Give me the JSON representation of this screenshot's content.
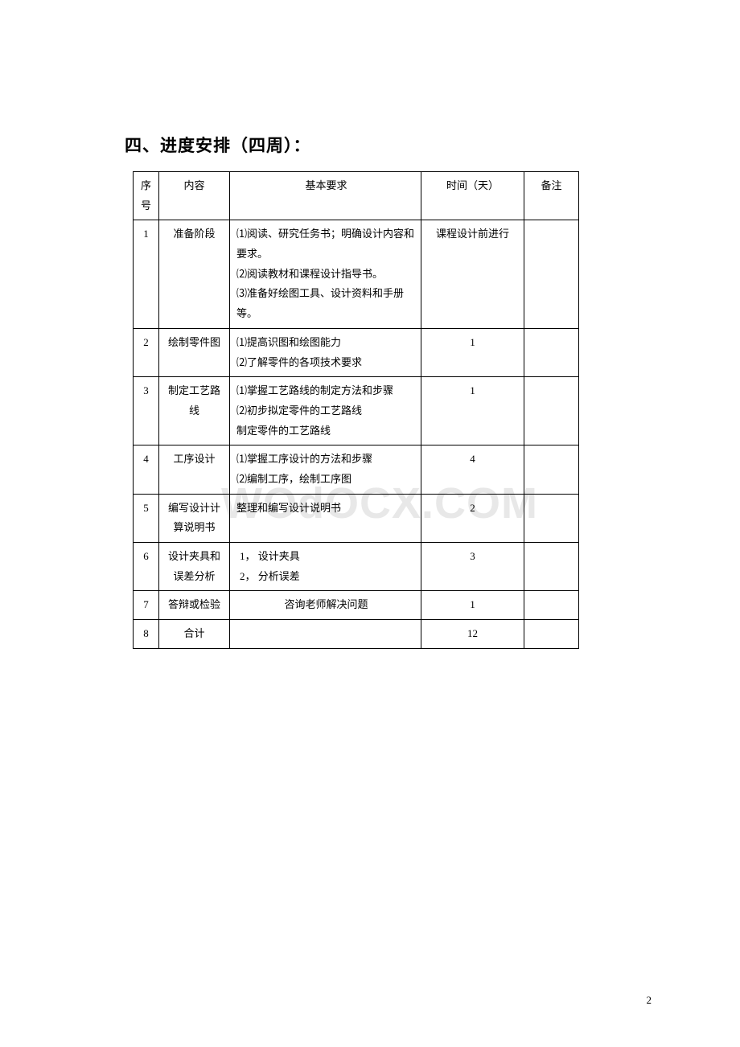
{
  "heading": "四、进度安排（四周）：",
  "watermark": "WOdOCX.COM",
  "page_number": "2",
  "table": {
    "headers": {
      "idx": "序号",
      "content": "内容",
      "req": "基本要求",
      "time": "时间（天）",
      "note": "备注"
    },
    "rows": [
      {
        "idx": "1",
        "content": "准备阶段",
        "req": [
          "⑴阅读、研究任务书；明确设计内容和要求。",
          "⑵阅读教材和课程设计指导书。",
          "⑶准备好绘图工具、设计资料和手册等。"
        ],
        "time": "课程设计前进行",
        "note": ""
      },
      {
        "idx": "2",
        "content": "绘制零件图",
        "req": [
          "⑴提高识图和绘图能力",
          "⑵了解零件的各项技术要求"
        ],
        "time": "1",
        "note": ""
      },
      {
        "idx": "3",
        "content": "制定工艺路线",
        "req": [
          "⑴掌握工艺路线的制定方法和步骤",
          "⑵初步拟定零件的工艺路线",
          "制定零件的工艺路线"
        ],
        "time": "1",
        "note": ""
      },
      {
        "idx": "4",
        "content": "工序设计",
        "req": [
          "⑴掌握工序设计的方法和步骤",
          "⑵编制工序，绘制工序图"
        ],
        "time": "4",
        "note": ""
      },
      {
        "idx": "5",
        "content": "编写设计计算说明书",
        "req": [
          "整理和编写设计说明书"
        ],
        "time": "2",
        "note": ""
      },
      {
        "idx": "6",
        "content": "设计夹具和误差分析",
        "req": [
          "1， 设计夹具",
          "2， 分析误差"
        ],
        "time": "3",
        "note": ""
      },
      {
        "idx": "7",
        "content": "答辩或检验",
        "req_center": "咨询老师解决问题",
        "time": "1",
        "note": ""
      },
      {
        "idx": "8",
        "content": "合计",
        "req": [],
        "time": "12",
        "note": ""
      }
    ]
  }
}
